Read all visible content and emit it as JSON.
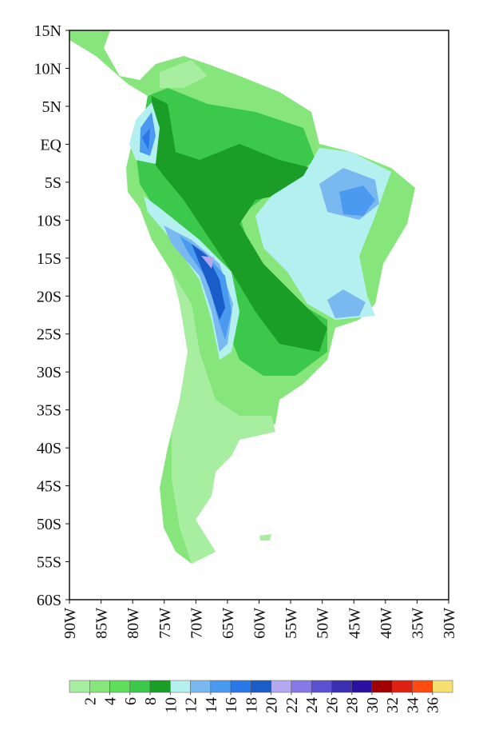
{
  "chart_data": {
    "type": "map",
    "xlim": [
      -90,
      -30
    ],
    "ylim": [
      -60,
      15
    ],
    "xticks": [
      {
        "value": -90,
        "label": "90W"
      },
      {
        "value": -85,
        "label": "85W"
      },
      {
        "value": -80,
        "label": "80W"
      },
      {
        "value": -75,
        "label": "75W"
      },
      {
        "value": -70,
        "label": "70W"
      },
      {
        "value": -65,
        "label": "65W"
      },
      {
        "value": -60,
        "label": "60W"
      },
      {
        "value": -55,
        "label": "55W"
      },
      {
        "value": -50,
        "label": "50W"
      },
      {
        "value": -45,
        "label": "45W"
      },
      {
        "value": -40,
        "label": "40W"
      },
      {
        "value": -35,
        "label": "35W"
      },
      {
        "value": -30,
        "label": "30W"
      }
    ],
    "yticks": [
      {
        "value": 15,
        "label": "15N"
      },
      {
        "value": 10,
        "label": "10N"
      },
      {
        "value": 5,
        "label": "5N"
      },
      {
        "value": 0,
        "label": "EQ"
      },
      {
        "value": -5,
        "label": "5S"
      },
      {
        "value": -10,
        "label": "10S"
      },
      {
        "value": -15,
        "label": "15S"
      },
      {
        "value": -20,
        "label": "20S"
      },
      {
        "value": -25,
        "label": "25S"
      },
      {
        "value": -30,
        "label": "30S"
      },
      {
        "value": -35,
        "label": "35S"
      },
      {
        "value": -40,
        "label": "40S"
      },
      {
        "value": -45,
        "label": "45S"
      },
      {
        "value": -50,
        "label": "50S"
      },
      {
        "value": -55,
        "label": "55S"
      },
      {
        "value": -60,
        "label": "60S"
      }
    ],
    "colorbar": {
      "levels": [
        2,
        4,
        6,
        8,
        10,
        12,
        14,
        16,
        18,
        20,
        22,
        24,
        26,
        28,
        30,
        32,
        34,
        36
      ],
      "colors": [
        "#a8eea0",
        "#86e67c",
        "#5ede5a",
        "#3cc84a",
        "#1a9e28",
        "#b4f0f0",
        "#7ab8f0",
        "#4a9af0",
        "#2a78e8",
        "#1a5cc8",
        "#b4a8f0",
        "#8878e8",
        "#5a50d0",
        "#3a30b0",
        "#2a10a0",
        "#a00000",
        "#e02010",
        "#ff4a10",
        "#f8e070"
      ]
    }
  }
}
